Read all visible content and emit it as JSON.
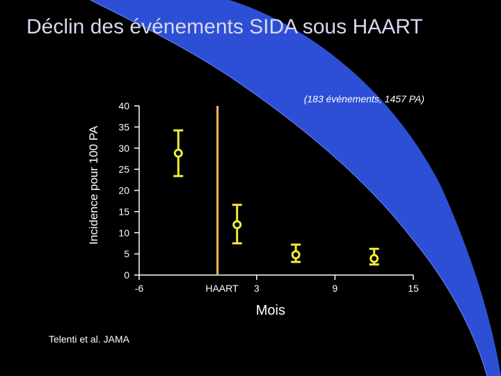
{
  "slide": {
    "title": "Déclin des événements SIDA sous HAART",
    "citation": "Telenti et al.  JAMA",
    "colors": {
      "background": "#000000",
      "accent_shape": "#2d4fd6",
      "title_text": "#d8d8f0",
      "data_markers": "#f2ec3a",
      "haart_line": "#f5b95a"
    }
  },
  "chart_data": {
    "type": "scatter",
    "title": "",
    "annotation": "(183 événements, 1457 PA)",
    "xlabel": "Mois",
    "ylabel": "Incidence pour 100 PA",
    "xlim": [
      -6,
      15
    ],
    "ylim": [
      0,
      40
    ],
    "x_ticks": [
      -6,
      3,
      9,
      15
    ],
    "y_ticks": [
      0,
      5,
      10,
      15,
      20,
      25,
      30,
      35,
      40
    ],
    "grid": false,
    "legend": "none",
    "haart_marker": {
      "label": "HAART",
      "x": 0
    },
    "series": [
      {
        "points": [
          {
            "x": -3,
            "y": 28.8,
            "low": 23.4,
            "high": 34.2
          },
          {
            "x": 1.5,
            "y": 11.9,
            "low": 7.5,
            "high": 16.6
          },
          {
            "x": 6,
            "y": 4.8,
            "low": 3.1,
            "high": 7.2
          },
          {
            "x": 12,
            "y": 3.9,
            "low": 2.5,
            "high": 6.2
          }
        ]
      }
    ]
  }
}
